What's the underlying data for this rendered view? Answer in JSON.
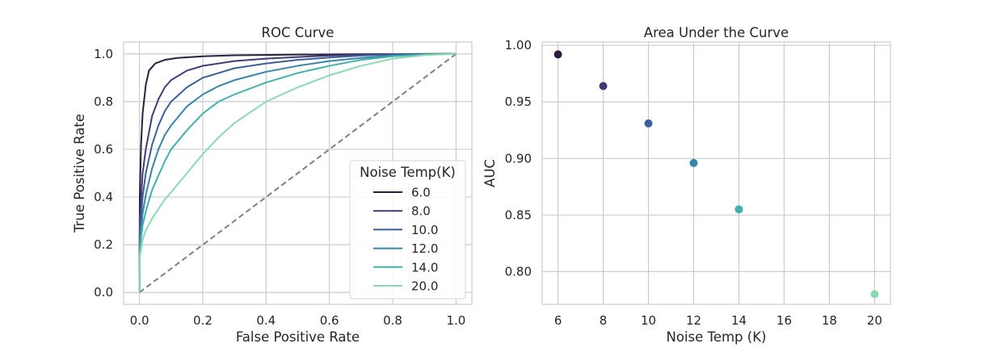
{
  "chart_data": [
    {
      "type": "line",
      "title": "ROC Curve",
      "xlabel": "False Positive Rate",
      "ylabel": "True Positive Rate",
      "xlim": [
        -0.05,
        1.05
      ],
      "ylim": [
        -0.05,
        1.05
      ],
      "xticks": [
        "0.0",
        "0.2",
        "0.4",
        "0.6",
        "0.8",
        "1.0"
      ],
      "yticks": [
        "0.0",
        "0.2",
        "0.4",
        "0.6",
        "0.8",
        "1.0"
      ],
      "grid": true,
      "legend": {
        "title": "Noise Temp(K)",
        "placement": "lower-right"
      },
      "series": [
        {
          "name": "6.0",
          "color": "#2d1e3e",
          "x": [
            0,
            0.001,
            0.005,
            0.01,
            0.02,
            0.03,
            0.05,
            0.08,
            0.12,
            0.2,
            0.3,
            0.5,
            0.7,
            1.0
          ],
          "y": [
            0,
            0.4,
            0.62,
            0.75,
            0.87,
            0.93,
            0.96,
            0.975,
            0.983,
            0.99,
            0.994,
            0.997,
            0.999,
            1.0
          ]
        },
        {
          "name": "8.0",
          "color": "#403a75",
          "x": [
            0,
            0.001,
            0.01,
            0.02,
            0.04,
            0.06,
            0.08,
            0.1,
            0.15,
            0.2,
            0.3,
            0.4,
            0.5,
            0.6,
            0.7,
            0.8,
            1.0
          ],
          "y": [
            0,
            0.3,
            0.5,
            0.6,
            0.74,
            0.81,
            0.86,
            0.89,
            0.93,
            0.95,
            0.97,
            0.98,
            0.987,
            0.993,
            0.997,
            0.999,
            1.0
          ]
        },
        {
          "name": "10.0",
          "color": "#3b5f99",
          "x": [
            0,
            0.001,
            0.01,
            0.02,
            0.04,
            0.06,
            0.08,
            0.1,
            0.15,
            0.2,
            0.25,
            0.3,
            0.4,
            0.5,
            0.6,
            0.7,
            0.8,
            1.0
          ],
          "y": [
            0,
            0.25,
            0.4,
            0.5,
            0.62,
            0.7,
            0.76,
            0.8,
            0.86,
            0.9,
            0.92,
            0.94,
            0.96,
            0.975,
            0.985,
            0.993,
            0.998,
            1.0
          ]
        },
        {
          "name": "12.0",
          "color": "#3585a8",
          "x": [
            0,
            0.001,
            0.01,
            0.02,
            0.04,
            0.06,
            0.08,
            0.1,
            0.15,
            0.2,
            0.25,
            0.3,
            0.4,
            0.5,
            0.6,
            0.7,
            0.8,
            0.9,
            1.0
          ],
          "y": [
            0,
            0.2,
            0.33,
            0.41,
            0.52,
            0.6,
            0.66,
            0.7,
            0.78,
            0.83,
            0.865,
            0.89,
            0.925,
            0.95,
            0.97,
            0.983,
            0.993,
            0.998,
            1.0
          ]
        },
        {
          "name": "14.0",
          "color": "#43b0aa",
          "x": [
            0,
            0.001,
            0.01,
            0.02,
            0.04,
            0.06,
            0.08,
            0.1,
            0.15,
            0.2,
            0.25,
            0.3,
            0.4,
            0.5,
            0.6,
            0.7,
            0.8,
            0.9,
            1.0
          ],
          "y": [
            0,
            0.18,
            0.28,
            0.34,
            0.43,
            0.49,
            0.55,
            0.6,
            0.68,
            0.75,
            0.8,
            0.83,
            0.88,
            0.92,
            0.95,
            0.975,
            0.99,
            0.997,
            1.0
          ]
        },
        {
          "name": "20.0",
          "color": "#8ad9b1",
          "x": [
            0,
            0.001,
            0.01,
            0.02,
            0.04,
            0.06,
            0.08,
            0.1,
            0.15,
            0.2,
            0.25,
            0.3,
            0.4,
            0.5,
            0.6,
            0.7,
            0.8,
            0.9,
            1.0
          ],
          "y": [
            0,
            0.15,
            0.22,
            0.26,
            0.31,
            0.35,
            0.39,
            0.42,
            0.5,
            0.58,
            0.65,
            0.71,
            0.8,
            0.86,
            0.91,
            0.95,
            0.98,
            0.995,
            1.0
          ]
        }
      ],
      "reference_line": {
        "x": [
          0,
          1
        ],
        "y": [
          0,
          1
        ],
        "style": "dashed",
        "color": "#808080"
      }
    },
    {
      "type": "scatter",
      "title": "Area Under the Curve",
      "xlabel": "Noise Temp (K)",
      "ylabel": "AUC",
      "xlim": [
        5.3,
        20.7
      ],
      "ylim": [
        0.771,
        1.003
      ],
      "xticks": [
        "6",
        "8",
        "10",
        "12",
        "14",
        "16",
        "18",
        "20"
      ],
      "yticks": [
        "0.80",
        "0.85",
        "0.90",
        "0.95",
        "1.00"
      ],
      "grid": true,
      "points": [
        {
          "x": 6,
          "y": 0.992,
          "color": "#2d1e3e"
        },
        {
          "x": 8,
          "y": 0.964,
          "color": "#403a75"
        },
        {
          "x": 10,
          "y": 0.931,
          "color": "#3b5f99"
        },
        {
          "x": 12,
          "y": 0.896,
          "color": "#3585a8"
        },
        {
          "x": 14,
          "y": 0.855,
          "color": "#43b0aa"
        },
        {
          "x": 20,
          "y": 0.78,
          "color": "#8ad9b1"
        }
      ]
    }
  ]
}
